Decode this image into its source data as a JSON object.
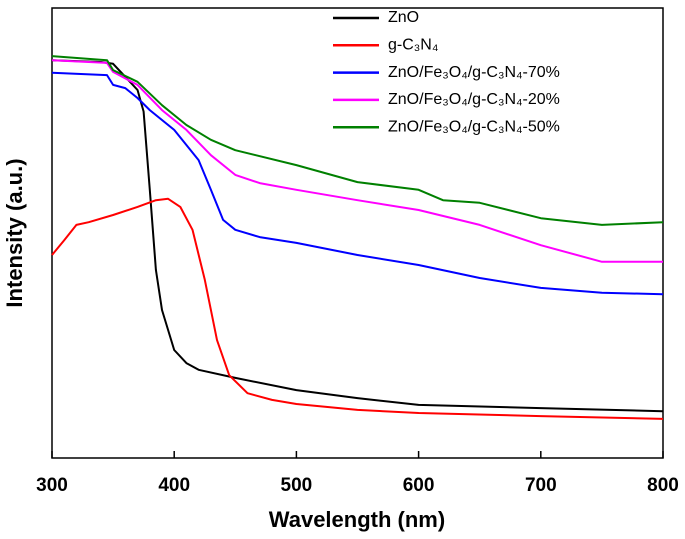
{
  "chart_data": {
    "type": "line",
    "xlabel": "Wavelength (nm)",
    "ylabel": "Intensity (a.u.)",
    "xlim": [
      300,
      800
    ],
    "xticks": [
      300,
      400,
      500,
      600,
      700,
      800
    ],
    "ylim": [
      0,
      100
    ],
    "legend": "upper right",
    "series": [
      {
        "name": "ZnO",
        "color": "#000000",
        "x": [
          300,
          340,
          350,
          370,
          375,
          380,
          385,
          390,
          400,
          410,
          420,
          450,
          500,
          550,
          600,
          700,
          800
        ],
        "values": [
          88.4,
          88,
          87.6,
          81.8,
          77,
          59.6,
          41.8,
          32.9,
          24,
          21.1,
          19.6,
          17.8,
          15.1,
          13.3,
          11.8,
          11.1,
          10.4
        ]
      },
      {
        "name": "g-C₃N₄",
        "color": "#ff0000",
        "x": [
          300,
          310,
          320,
          330,
          350,
          370,
          385,
          395,
          405,
          415,
          425,
          435,
          445,
          460,
          480,
          500,
          550,
          600,
          700,
          800
        ],
        "values": [
          45.1,
          48.4,
          51.8,
          52.4,
          54,
          55.8,
          57.3,
          57.6,
          55.8,
          50.7,
          39.6,
          26.2,
          18.4,
          14.4,
          12.9,
          12,
          10.7,
          10,
          9.3,
          8.7
        ]
      },
      {
        "name": "ZnO/Fe₃O₄/g-C₃N₄-70%",
        "color": "#0000ff",
        "x": [
          300,
          345,
          350,
          360,
          370,
          380,
          400,
          420,
          430,
          440,
          450,
          470,
          500,
          550,
          600,
          650,
          700,
          750,
          800
        ],
        "values": [
          85.6,
          85.1,
          82.9,
          82.2,
          80,
          77.3,
          72.9,
          66.2,
          59.6,
          52.9,
          50.7,
          49.1,
          47.8,
          45.1,
          42.9,
          40,
          37.8,
          36.7,
          36.4
        ]
      },
      {
        "name": "ZnO/Fe₃O₄/g-C₃N₄-20%",
        "color": "#ff00ff",
        "x": [
          300,
          345,
          350,
          370,
          390,
          410,
          430,
          450,
          470,
          500,
          550,
          600,
          650,
          700,
          750,
          800
        ],
        "values": [
          88.4,
          87.8,
          85.8,
          82.9,
          77.3,
          72.9,
          67.3,
          62.9,
          61.1,
          59.6,
          57.3,
          55.1,
          51.8,
          47.3,
          43.6,
          43.6
        ]
      },
      {
        "name": "ZnO/Fe₃O₄/g-C₃N₄-50%",
        "color": "#008000",
        "x": [
          300,
          345,
          350,
          370,
          390,
          410,
          430,
          450,
          500,
          550,
          600,
          620,
          650,
          700,
          750,
          800
        ],
        "values": [
          89.3,
          88.4,
          86.2,
          83.6,
          78.4,
          74,
          70.7,
          68.4,
          65.1,
          61.3,
          59.6,
          57.3,
          56.7,
          53.3,
          51.8,
          52.4
        ]
      }
    ]
  }
}
